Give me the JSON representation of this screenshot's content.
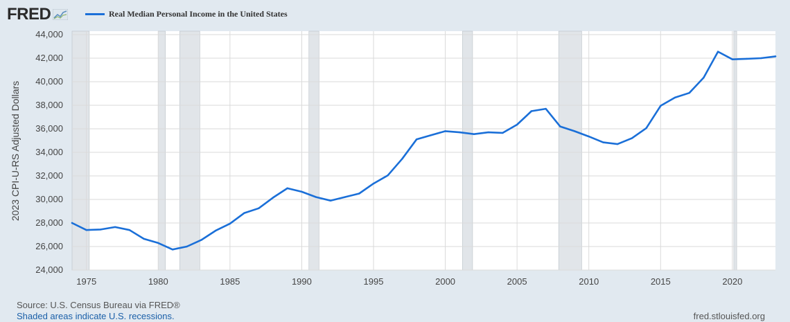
{
  "header": {
    "logo_text": "FRED",
    "logo_icon": "chart-line-icon",
    "legend_label": "Real Median Personal Income in the United States"
  },
  "footer": {
    "source": "Source: U.S. Census Bureau via FRED®",
    "note": "Shaded areas indicate U.S. recessions.",
    "url": "fred.stlouisfed.org"
  },
  "colors": {
    "background": "#e1e9f0",
    "plot_background": "#ffffff",
    "series": "#1a6fd8",
    "recession": "#e1e5e9",
    "gridline": "#dadada"
  },
  "chart_data": {
    "type": "line",
    "title": "",
    "xlabel": "",
    "ylabel": "2023 CPI-U-RS Adjusted Dollars",
    "xlim": [
      1974,
      2023
    ],
    "ylim": [
      24000,
      44000
    ],
    "grid": true,
    "legend_position": "top-left",
    "x_ticks": [
      1975,
      1980,
      1985,
      1990,
      1995,
      2000,
      2005,
      2010,
      2015,
      2020
    ],
    "y_ticks": [
      24000,
      26000,
      28000,
      30000,
      32000,
      34000,
      36000,
      38000,
      40000,
      42000,
      44000
    ],
    "y_tick_labels": [
      "24,000",
      "26,000",
      "28,000",
      "30,000",
      "32,000",
      "34,000",
      "36,000",
      "38,000",
      "40,000",
      "42,000",
      "44,000"
    ],
    "recessions": [
      [
        1974.0,
        1975.2
      ],
      [
        1980.0,
        1980.5
      ],
      [
        1981.5,
        1982.9
      ],
      [
        1990.5,
        1991.2
      ],
      [
        2001.2,
        2001.9
      ],
      [
        2007.9,
        2009.5
      ],
      [
        2020.1,
        2020.3
      ]
    ],
    "series": [
      {
        "name": "Real Median Personal Income in the United States",
        "x": [
          1974,
          1975,
          1976,
          1977,
          1978,
          1979,
          1980,
          1981,
          1982,
          1983,
          1984,
          1985,
          1986,
          1987,
          1988,
          1989,
          1990,
          1991,
          1992,
          1993,
          1994,
          1995,
          1996,
          1997,
          1998,
          1999,
          2000,
          2001,
          2002,
          2003,
          2004,
          2005,
          2006,
          2007,
          2008,
          2009,
          2010,
          2011,
          2012,
          2013,
          2014,
          2015,
          2016,
          2017,
          2018,
          2019,
          2020,
          2021,
          2022,
          2023
        ],
        "values": [
          28000,
          27400,
          27450,
          27650,
          27400,
          26650,
          26300,
          25750,
          26000,
          26550,
          27350,
          27950,
          28850,
          29250,
          30150,
          30950,
          30650,
          30200,
          29900,
          30200,
          30500,
          31350,
          32050,
          33450,
          35100,
          35450,
          35800,
          35700,
          35550,
          35700,
          35650,
          36350,
          37500,
          37700,
          36200,
          35800,
          35350,
          34850,
          34700,
          35200,
          36050,
          37950,
          38650,
          39050,
          40350,
          42550,
          41900,
          41950,
          42000,
          42150
        ]
      }
    ]
  }
}
